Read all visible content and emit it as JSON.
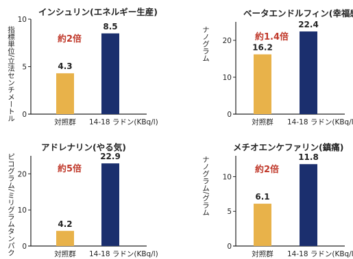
{
  "chart_data": [
    {
      "type": "bar",
      "title": "インシュリン(エネルギー生産)",
      "ylabel": "指標単位/立法センチメートル",
      "categories": [
        "対照群",
        "14-18 ラドン(KBq/l)"
      ],
      "values": [
        4.3,
        8.5
      ],
      "value_labels": [
        "4.3",
        "8.5"
      ],
      "ylim": [
        0,
        10
      ],
      "yticks": [
        0,
        5,
        10
      ],
      "annotation": "約2倍",
      "colors": [
        "#e8b24a",
        "#1b2f6e"
      ]
    },
    {
      "type": "bar",
      "title": "ベータエンドルフィン(幸福感)",
      "ylabel": "ナノグラム",
      "categories": [
        "対照群",
        "14-18 ラドン(KBq/l)"
      ],
      "values": [
        16.2,
        22.4
      ],
      "value_labels": [
        "16.2",
        "22.4"
      ],
      "ylim": [
        0,
        25
      ],
      "yticks": [
        0,
        10,
        20
      ],
      "annotation": "約1.4倍",
      "colors": [
        "#e8b24a",
        "#1b2f6e"
      ]
    },
    {
      "type": "bar",
      "title": "アドレナリン(やる気)",
      "ylabel": "ピコグラム/ミリグラムタンパク",
      "categories": [
        "対照群",
        "14-18 ラドン(KBq/l)"
      ],
      "values": [
        4.2,
        22.9
      ],
      "value_labels": [
        "4.2",
        "22.9"
      ],
      "ylim": [
        0,
        25
      ],
      "yticks": [
        0,
        10,
        20
      ],
      "annotation": "約5倍",
      "colors": [
        "#e8b24a",
        "#1b2f6e"
      ]
    },
    {
      "type": "bar",
      "title": "メチオエンケファリン(鎮痛)",
      "ylabel": "ナノグラム/グラム",
      "categories": [
        "対照群",
        "14-18 ラドン(KBq/l)"
      ],
      "values": [
        6.1,
        11.8
      ],
      "value_labels": [
        "6.1",
        "11.8"
      ],
      "ylim": [
        0,
        13
      ],
      "yticks": [
        0,
        5,
        10
      ],
      "annotation": "約2倍",
      "colors": [
        "#e8b24a",
        "#1b2f6e"
      ]
    }
  ],
  "style": {
    "annotation_color": "#c0392b",
    "axis_color": "#222222",
    "text_color": "#222222"
  }
}
